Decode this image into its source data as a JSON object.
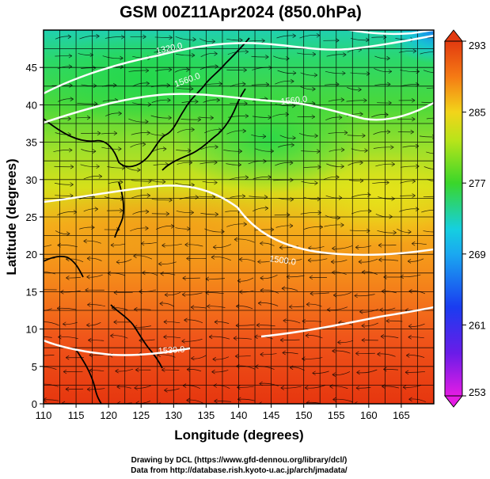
{
  "title": "GSM 00Z11Apr2024 (850.0hPa)",
  "xlabel": "Longitude (degrees)",
  "ylabel": "Latitude  (degrees)",
  "credit_line1": "Drawing by DCL (https://www.gfd-dennou.org/library/dcl/)",
  "credit_line2": "Data from http://database.rish.kyoto-u.ac.jp/arch/jmadata/",
  "x_ticks": [
    "110",
    "115",
    "120",
    "125",
    "130",
    "135",
    "140",
    "145",
    "150",
    "155",
    "160",
    "165"
  ],
  "y_ticks": [
    "0",
    "5",
    "10",
    "15",
    "20",
    "25",
    "30",
    "35",
    "40",
    "45"
  ],
  "colorbar_ticks": [
    "253",
    "261",
    "269",
    "277",
    "285",
    "293"
  ],
  "contour_labels": [
    "1320.0",
    "1560.0",
    "1560.0",
    "1500.0",
    "1530.0"
  ],
  "colors": {
    "warm": "#e23a10",
    "mid": "#f59a14",
    "yellow": "#dfe41a",
    "green": "#3ad62a",
    "cyan": "#15cfe0",
    "blue": "#1a3cf0",
    "magenta": "#e41ce4"
  },
  "map_data": {
    "field": "temperature (K) with geopotential height contours and streamlines",
    "xlim": [
      110,
      170
    ],
    "ylim": [
      0,
      50
    ],
    "colorbar_range": [
      253,
      293
    ]
  }
}
